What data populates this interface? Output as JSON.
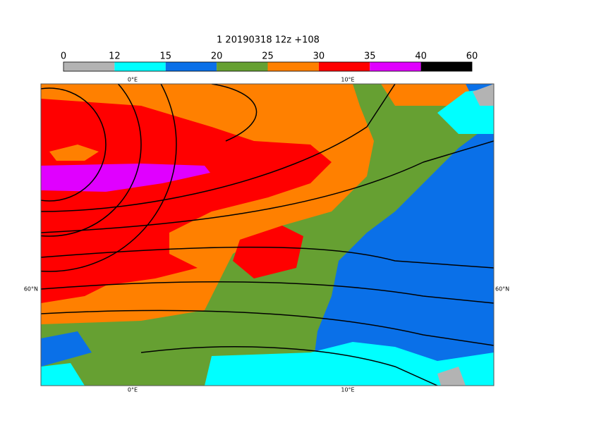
{
  "header": {
    "title": "1 20190318 12z +108"
  },
  "colorbar": {
    "levels": [
      0,
      12,
      15,
      20,
      25,
      30,
      35,
      40,
      60
    ],
    "colors": [
      "#b3b3b3",
      "#00ffff",
      "#0a70e8",
      "#66a032",
      "#ff8000",
      "#ff0000",
      "#e000ff",
      "#000000"
    ]
  },
  "map": {
    "lon_labels": [
      "0°E",
      "10°E"
    ],
    "lat_labels": [
      "60°N"
    ]
  }
}
